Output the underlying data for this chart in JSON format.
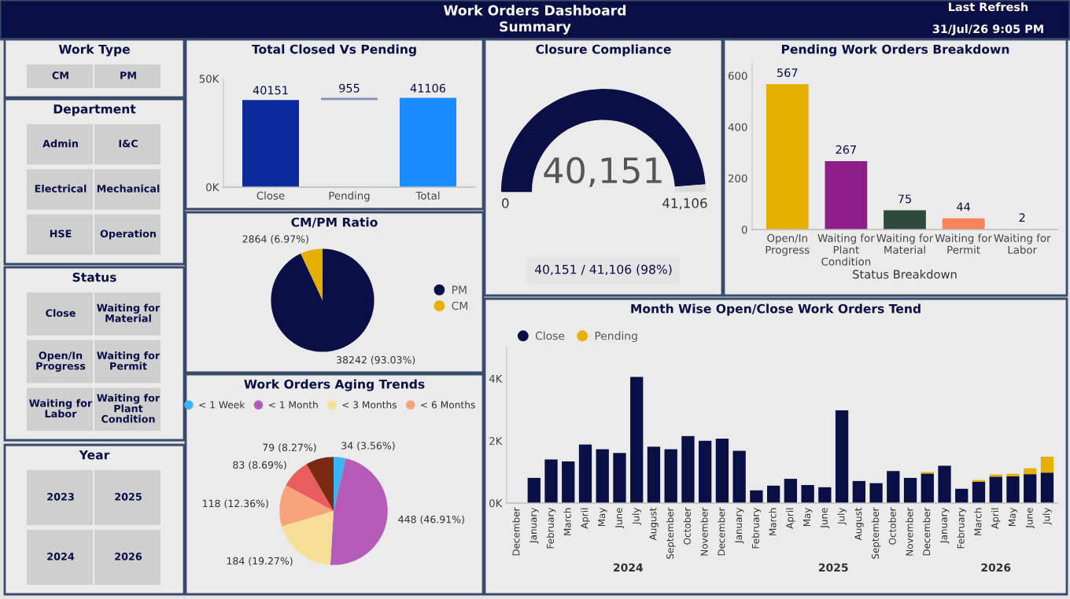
{
  "chart_data": [
    {
      "type": "other",
      "title": "Work Orders Dashboard Summary",
      "annotations": [
        "Last Refresh",
        "31/Jul/26 9:05 PM"
      ]
    },
    {
      "type": "other",
      "title": "Work Type",
      "annotations": [
        "CM",
        "PM"
      ]
    },
    {
      "type": "bar",
      "title": "Total Closed Vs Pending",
      "categories": [
        "Close",
        "Pending",
        "Total"
      ],
      "values": [
        40151,
        955,
        41106
      ],
      "base": [
        0,
        40151,
        0
      ],
      "colors": [
        "#0b2a9c",
        "#8090b0",
        "#1a8cff"
      ],
      "data_labels": true,
      "ylim": [
        0,
        50000
      ],
      "yticks": [
        {
          "value": 0,
          "label": "0K"
        },
        {
          "value": 50000,
          "label": "50K"
        }
      ]
    },
    {
      "type": "donut",
      "title": "Closure Compliance",
      "categories": [
        null,
        null
      ],
      "values": [
        40151,
        955
      ],
      "value_labels": [
        "40,151",
        null
      ],
      "colors": [
        "#0a1045",
        "#dcdcdc"
      ],
      "annotations": [
        "0",
        "41,106",
        "40,151 / 41,106 (98%)"
      ]
    },
    {
      "type": "bar",
      "title": "Pending Work Orders Breakdown",
      "xlabel": "Status Breakdown",
      "categories": [
        "Open/In Progress",
        "Waiting for Plant Condition",
        "Waiting for Material",
        "Waiting for Permit",
        "Waiting for Labor"
      ],
      "values": [
        567,
        267,
        75,
        44,
        2
      ],
      "colors": [
        "#e6b000",
        "#8e1f8a",
        "#2f4a3a",
        "#f7845a",
        "#f1c6cf"
      ],
      "data_labels": true,
      "ylim": [
        0,
        650
      ],
      "yticks": [
        0,
        200,
        400,
        600
      ]
    },
    {
      "type": "other",
      "title": "Department",
      "annotations": [
        "Admin",
        "I&C",
        "Electrical",
        "Mechanical",
        "HSE",
        "Operation"
      ]
    },
    {
      "type": "pie",
      "title": "CM/PM Ratio",
      "categories": [
        "PM",
        "CM"
      ],
      "values": [
        38242,
        2864
      ],
      "value_labels": [
        "38242 (93.03%)",
        "2864 (6.97%)"
      ],
      "colors": [
        "#0a1045",
        "#e6b000"
      ],
      "legend": "right"
    },
    {
      "type": "other",
      "title": "Status",
      "annotations": [
        "Close",
        "Waiting for Material",
        "Open/In Progress",
        "Waiting for Permit",
        "Waiting for Labor",
        "Waiting for Plant Condition"
      ]
    },
    {
      "type": "bar",
      "title": "Month Wise Open/Close Work Orders Tend",
      "stacked": true,
      "legend": "top left",
      "categories": [
        "December",
        "January",
        "February",
        "March",
        "April",
        "May",
        "June",
        "July",
        "August",
        "September",
        "October",
        "November",
        "December",
        "January",
        "February",
        "March",
        "April",
        "May",
        "June",
        "July",
        "August",
        "September",
        "October",
        "November",
        "December",
        "January",
        "February",
        "March",
        "April",
        "May",
        "June",
        "July"
      ],
      "series": [
        {
          "name": "Close",
          "color": "#0a0f45",
          "values": [
            0,
            810,
            1400,
            1340,
            1880,
            1730,
            1610,
            4050,
            1810,
            1730,
            2150,
            2000,
            2070,
            1680,
            410,
            560,
            780,
            580,
            510,
            2980,
            710,
            640,
            1030,
            810,
            950,
            1200,
            460,
            690,
            850,
            860,
            930,
            980
          ]
        },
        {
          "name": "Pending",
          "color": "#e6b000",
          "values": [
            null,
            null,
            null,
            null,
            null,
            null,
            null,
            null,
            null,
            null,
            null,
            null,
            null,
            null,
            null,
            null,
            null,
            null,
            null,
            null,
            null,
            null,
            null,
            null,
            50,
            null,
            null,
            50,
            70,
            80,
            190,
            510
          ]
        }
      ],
      "ylim": [
        0,
        5000
      ],
      "yticks": [
        {
          "value": 0,
          "label": "0K"
        },
        {
          "value": 2000,
          "label": "2K"
        },
        {
          "value": 4000,
          "label": "4K"
        }
      ],
      "annotations": [
        "2024",
        "2025",
        "2026"
      ]
    },
    {
      "type": "pie",
      "title": "Work Orders Aging Trends",
      "categories": [
        "< 1 Week",
        "< 1 Month",
        "< 3 Months",
        "< 6 Months",
        null,
        null
      ],
      "values": [
        34,
        448,
        184,
        118,
        83,
        79
      ],
      "value_labels": [
        "34 (3.56%)",
        "448 (46.91%)",
        "184 (19.27%)",
        "118 (12.36%)",
        "83 (8.69%)",
        "79 (8.27%)"
      ],
      "colors": [
        "#3ab4f2",
        "#b45cb8",
        "#f7df98",
        "#f7a37c",
        "#e85d5d",
        "#7a2a10"
      ],
      "legend": "top"
    },
    {
      "type": "other",
      "title": "Year",
      "annotations": [
        "2023",
        "2025",
        "2024",
        "2026"
      ]
    }
  ]
}
